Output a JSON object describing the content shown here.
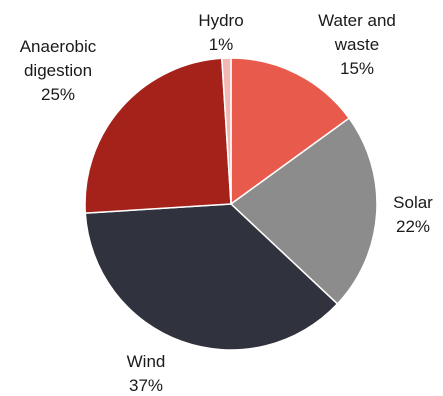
{
  "chart_data": {
    "type": "pie",
    "slices": [
      {
        "label": [
          "Water and",
          "waste"
        ],
        "value": 15,
        "value_label": "15%",
        "color": "#e85a4c"
      },
      {
        "label": [
          "Solar"
        ],
        "value": 22,
        "value_label": "22%",
        "color": "#8c8c8c"
      },
      {
        "label": [
          "Wind"
        ],
        "value": 37,
        "value_label": "37%",
        "color": "#30333d"
      },
      {
        "label": [
          "Anaerobic",
          "digestion"
        ],
        "value": 25,
        "value_label": "25%",
        "color": "#a5221a"
      },
      {
        "label": [
          "Hydro"
        ],
        "value": 1,
        "value_label": "1%",
        "color": "#f3b8b3"
      }
    ],
    "start": "12 o'clock",
    "direction": "clockwise",
    "legend": "none (labels beside slices)"
  }
}
